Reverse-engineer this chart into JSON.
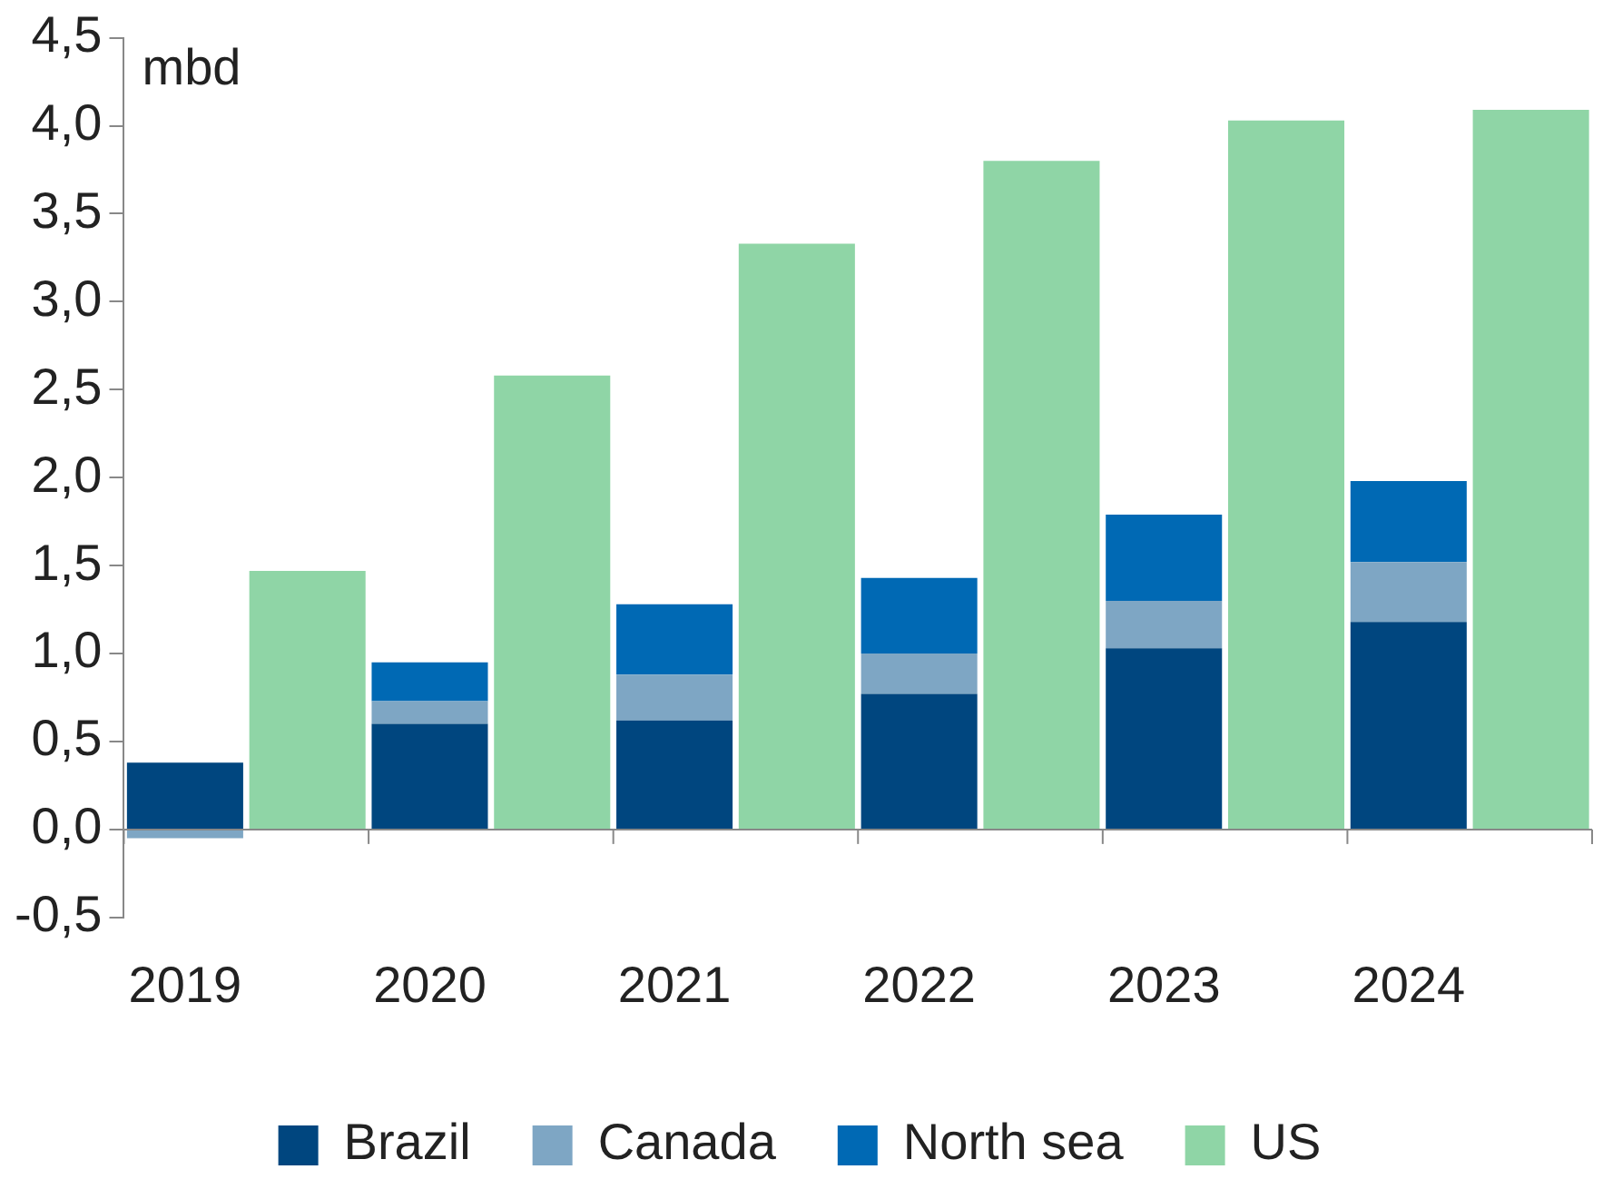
{
  "chart_data": {
    "type": "bar",
    "ylabel": "mbd",
    "stacked": true,
    "categories": [
      "2019",
      null,
      "2020",
      null,
      "2021",
      null,
      "2022",
      null,
      "2023",
      null,
      "2024",
      null
    ],
    "series": [
      {
        "name": "Brazil",
        "color": "#00467f",
        "values": [
          0.38,
          null,
          0.6,
          null,
          0.62,
          null,
          0.77,
          null,
          1.03,
          null,
          1.18,
          null
        ]
      },
      {
        "name": "Canada",
        "color": "#7ea6c4",
        "values": [
          -0.05,
          null,
          0.13,
          null,
          0.26,
          null,
          0.23,
          null,
          0.27,
          null,
          0.34,
          null
        ]
      },
      {
        "name": "North sea",
        "color": "#0069b4",
        "values": [
          null,
          null,
          0.22,
          null,
          0.4,
          null,
          0.43,
          null,
          0.49,
          null,
          0.46,
          null
        ]
      },
      {
        "name": "US",
        "color": "#8fd5a6",
        "values": [
          null,
          1.47,
          null,
          2.58,
          null,
          3.33,
          null,
          3.8,
          null,
          4.03,
          null,
          4.09
        ]
      }
    ],
    "ylim": [
      -0.5,
      4.5
    ],
    "yticks": [
      {
        "value": -0.5,
        "label": "-0,5"
      },
      {
        "value": 0,
        "label": "0,0"
      },
      {
        "value": 0.5,
        "label": "0,5"
      },
      {
        "value": 1,
        "label": "1,0"
      },
      {
        "value": 1.5,
        "label": "1,5"
      },
      {
        "value": 2,
        "label": "2,0"
      },
      {
        "value": 2.5,
        "label": "2,5"
      },
      {
        "value": 3,
        "label": "3,0"
      },
      {
        "value": 3.5,
        "label": "3,5"
      },
      {
        "value": 4,
        "label": "4,0"
      },
      {
        "value": 4.5,
        "label": "4,5"
      }
    ],
    "grid": false,
    "legend": "bottom"
  }
}
